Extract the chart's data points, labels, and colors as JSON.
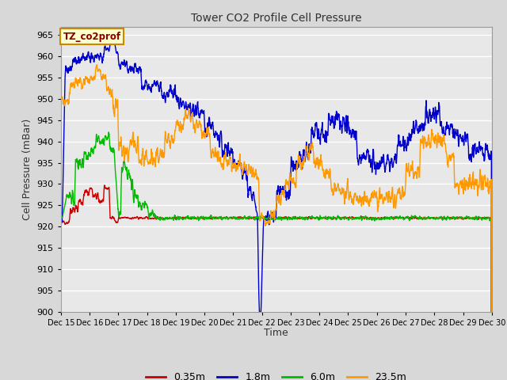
{
  "title": "Tower CO2 Profile Cell Pressure",
  "ylabel": "Cell Pressure (mBar)",
  "xlabel": "Time",
  "annotation": "TZ_co2prof",
  "ylim": [
    900,
    967
  ],
  "bg_color": "#d8d8d8",
  "plot_bg_color": "#e8e8e8",
  "grid_color": "#c8c8c8",
  "line_colors": {
    "035m": "#cc0000",
    "18m": "#0000cc",
    "60m": "#00bb00",
    "235m": "#ff9900"
  },
  "legend_labels": [
    "0.35m",
    "1.8m",
    "6.0m",
    "23.5m"
  ],
  "xtick_labels": [
    "Dec 15",
    "Dec 16",
    "Dec 17",
    "Dec 18",
    "Dec 19",
    "Dec 20",
    "Dec 21",
    "Dec 22",
    "Dec 23",
    "Dec 24",
    "Dec 25",
    "Dec 26",
    "Dec 27",
    "Dec 28",
    "Dec 29",
    "Dec 30"
  ],
  "annotation_box_color": "#ffffcc",
  "annotation_text_color": "#880000",
  "annotation_border_color": "#cc8800"
}
